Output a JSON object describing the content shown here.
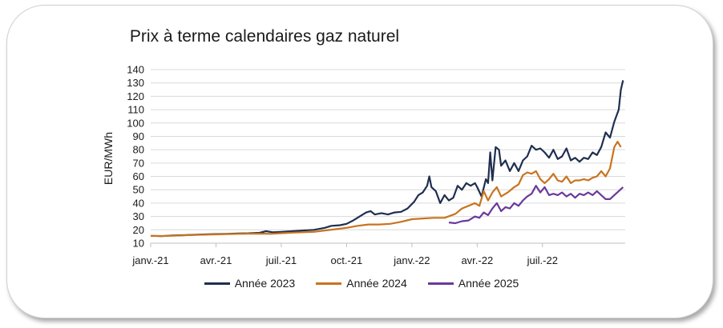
{
  "chart_data": {
    "type": "line",
    "title": "Prix à terme calendaires gaz naturel",
    "ylabel": "EUR/MWh",
    "xlabel": "",
    "ylim": [
      10,
      140
    ],
    "yticks": [
      10,
      20,
      30,
      40,
      50,
      60,
      70,
      80,
      90,
      100,
      110,
      120,
      130,
      140
    ],
    "xticks": [
      {
        "label": "janv.-21",
        "month": 0
      },
      {
        "label": "avr.-21",
        "month": 3
      },
      {
        "label": "juil.-21",
        "month": 6
      },
      {
        "label": "oct.-21",
        "month": 9
      },
      {
        "label": "janv.-22",
        "month": 12
      },
      {
        "label": "avr.-22",
        "month": 15
      },
      {
        "label": "juil.-22",
        "month": 18
      }
    ],
    "grid": "horizontal",
    "legend": "bottom",
    "series": [
      {
        "name": "Année 2023",
        "color": "#1f2f4f",
        "points": [
          [
            0.0,
            15.5
          ],
          [
            0.5,
            15.3
          ],
          [
            1.0,
            15.8
          ],
          [
            1.5,
            16.0
          ],
          [
            2.0,
            16.3
          ],
          [
            2.5,
            16.6
          ],
          [
            3.0,
            16.8
          ],
          [
            3.5,
            17.0
          ],
          [
            4.0,
            17.3
          ],
          [
            4.5,
            17.4
          ],
          [
            5.0,
            17.8
          ],
          [
            5.3,
            19.0
          ],
          [
            5.6,
            18.2
          ],
          [
            6.0,
            18.5
          ],
          [
            6.5,
            19.0
          ],
          [
            7.0,
            19.5
          ],
          [
            7.5,
            20.0
          ],
          [
            8.0,
            21.5
          ],
          [
            8.3,
            23.0
          ],
          [
            8.7,
            23.5
          ],
          [
            9.0,
            24.5
          ],
          [
            9.3,
            27.0
          ],
          [
            9.6,
            30.0
          ],
          [
            9.9,
            33.0
          ],
          [
            10.1,
            34.0
          ],
          [
            10.3,
            31.5
          ],
          [
            10.6,
            32.5
          ],
          [
            10.9,
            31.5
          ],
          [
            11.2,
            33.0
          ],
          [
            11.5,
            33.5
          ],
          [
            11.8,
            36.0
          ],
          [
            12.1,
            41.0
          ],
          [
            12.3,
            46.0
          ],
          [
            12.5,
            48.0
          ],
          [
            12.7,
            53.0
          ],
          [
            12.8,
            60.0
          ],
          [
            12.9,
            52.0
          ],
          [
            13.1,
            49.0
          ],
          [
            13.3,
            40.0
          ],
          [
            13.5,
            46.0
          ],
          [
            13.7,
            42.0
          ],
          [
            13.9,
            44.0
          ],
          [
            14.1,
            53.0
          ],
          [
            14.3,
            50.0
          ],
          [
            14.5,
            55.0
          ],
          [
            14.7,
            53.0
          ],
          [
            14.9,
            55.0
          ],
          [
            15.0,
            52.0
          ],
          [
            15.2,
            45.0
          ],
          [
            15.4,
            58.0
          ],
          [
            15.5,
            55.0
          ],
          [
            15.6,
            78.0
          ],
          [
            15.7,
            57.0
          ],
          [
            15.85,
            82.0
          ],
          [
            16.0,
            80.0
          ],
          [
            16.1,
            68.0
          ],
          [
            16.3,
            72.0
          ],
          [
            16.5,
            64.0
          ],
          [
            16.7,
            70.0
          ],
          [
            16.9,
            64.0
          ],
          [
            17.1,
            72.0
          ],
          [
            17.3,
            75.0
          ],
          [
            17.5,
            83.0
          ],
          [
            17.7,
            80.0
          ],
          [
            17.9,
            81.0
          ],
          [
            18.1,
            78.0
          ],
          [
            18.3,
            74.0
          ],
          [
            18.5,
            80.0
          ],
          [
            18.7,
            73.0
          ],
          [
            18.9,
            75.0
          ],
          [
            19.1,
            81.0
          ],
          [
            19.3,
            72.0
          ],
          [
            19.5,
            74.0
          ],
          [
            19.7,
            71.0
          ],
          [
            19.9,
            74.0
          ],
          [
            20.1,
            73.0
          ],
          [
            20.3,
            78.0
          ],
          [
            20.5,
            76.0
          ],
          [
            20.7,
            82.0
          ],
          [
            20.9,
            93.0
          ],
          [
            21.1,
            89.0
          ],
          [
            21.3,
            101.0
          ],
          [
            21.5,
            110.0
          ],
          [
            21.6,
            125.0
          ],
          [
            21.7,
            132.0
          ]
        ]
      },
      {
        "name": "Année 2024",
        "color": "#c8741e",
        "points": [
          [
            0.0,
            15.5
          ],
          [
            0.5,
            15.4
          ],
          [
            1.0,
            15.6
          ],
          [
            1.5,
            15.9
          ],
          [
            2.0,
            16.2
          ],
          [
            2.5,
            16.4
          ],
          [
            3.0,
            16.6
          ],
          [
            3.5,
            16.8
          ],
          [
            4.0,
            17.0
          ],
          [
            4.5,
            17.1
          ],
          [
            5.0,
            17.2
          ],
          [
            5.5,
            17.0
          ],
          [
            6.0,
            17.5
          ],
          [
            6.5,
            17.9
          ],
          [
            7.0,
            18.2
          ],
          [
            7.5,
            18.5
          ],
          [
            8.0,
            19.5
          ],
          [
            8.5,
            20.5
          ],
          [
            9.0,
            21.5
          ],
          [
            9.5,
            23.0
          ],
          [
            10.0,
            24.0
          ],
          [
            10.5,
            24.0
          ],
          [
            11.0,
            24.5
          ],
          [
            11.5,
            26.0
          ],
          [
            12.0,
            28.0
          ],
          [
            12.5,
            28.5
          ],
          [
            13.0,
            29.0
          ],
          [
            13.5,
            29.0
          ],
          [
            14.0,
            32.0
          ],
          [
            14.3,
            36.0
          ],
          [
            14.6,
            38.0
          ],
          [
            14.9,
            40.0
          ],
          [
            15.1,
            38.0
          ],
          [
            15.3,
            49.0
          ],
          [
            15.5,
            42.0
          ],
          [
            15.7,
            48.0
          ],
          [
            15.9,
            52.0
          ],
          [
            16.1,
            45.0
          ],
          [
            16.4,
            48.0
          ],
          [
            16.7,
            52.0
          ],
          [
            16.9,
            54.0
          ],
          [
            17.1,
            61.0
          ],
          [
            17.3,
            63.0
          ],
          [
            17.5,
            62.0
          ],
          [
            17.7,
            64.0
          ],
          [
            17.9,
            58.0
          ],
          [
            18.1,
            55.0
          ],
          [
            18.3,
            58.0
          ],
          [
            18.5,
            62.0
          ],
          [
            18.7,
            57.0
          ],
          [
            18.9,
            56.0
          ],
          [
            19.1,
            60.0
          ],
          [
            19.3,
            55.0
          ],
          [
            19.5,
            57.0
          ],
          [
            19.7,
            57.0
          ],
          [
            19.9,
            58.0
          ],
          [
            20.1,
            57.0
          ],
          [
            20.3,
            59.0
          ],
          [
            20.5,
            60.0
          ],
          [
            20.7,
            64.0
          ],
          [
            20.9,
            60.0
          ],
          [
            21.1,
            66.0
          ],
          [
            21.3,
            82.0
          ],
          [
            21.45,
            86.0
          ],
          [
            21.6,
            82.0
          ]
        ]
      },
      {
        "name": "Année 2025",
        "color": "#6a3a9a",
        "points": [
          [
            13.7,
            25.5
          ],
          [
            14.0,
            25.0
          ],
          [
            14.3,
            26.5
          ],
          [
            14.6,
            27.0
          ],
          [
            14.9,
            30.0
          ],
          [
            15.1,
            29.0
          ],
          [
            15.3,
            33.0
          ],
          [
            15.5,
            31.0
          ],
          [
            15.7,
            36.0
          ],
          [
            15.9,
            40.0
          ],
          [
            16.1,
            34.0
          ],
          [
            16.3,
            37.0
          ],
          [
            16.5,
            36.0
          ],
          [
            16.7,
            40.0
          ],
          [
            16.9,
            38.0
          ],
          [
            17.1,
            42.0
          ],
          [
            17.3,
            45.0
          ],
          [
            17.5,
            47.0
          ],
          [
            17.7,
            53.0
          ],
          [
            17.9,
            48.0
          ],
          [
            18.1,
            52.0
          ],
          [
            18.3,
            46.0
          ],
          [
            18.5,
            47.0
          ],
          [
            18.7,
            46.0
          ],
          [
            18.9,
            48.0
          ],
          [
            19.1,
            45.0
          ],
          [
            19.3,
            47.0
          ],
          [
            19.5,
            44.0
          ],
          [
            19.7,
            47.0
          ],
          [
            19.9,
            46.0
          ],
          [
            20.1,
            48.0
          ],
          [
            20.3,
            46.0
          ],
          [
            20.5,
            49.0
          ],
          [
            20.7,
            46.0
          ],
          [
            20.9,
            43.0
          ],
          [
            21.1,
            43.0
          ],
          [
            21.3,
            46.0
          ],
          [
            21.5,
            49.0
          ],
          [
            21.7,
            52.0
          ]
        ]
      }
    ]
  }
}
